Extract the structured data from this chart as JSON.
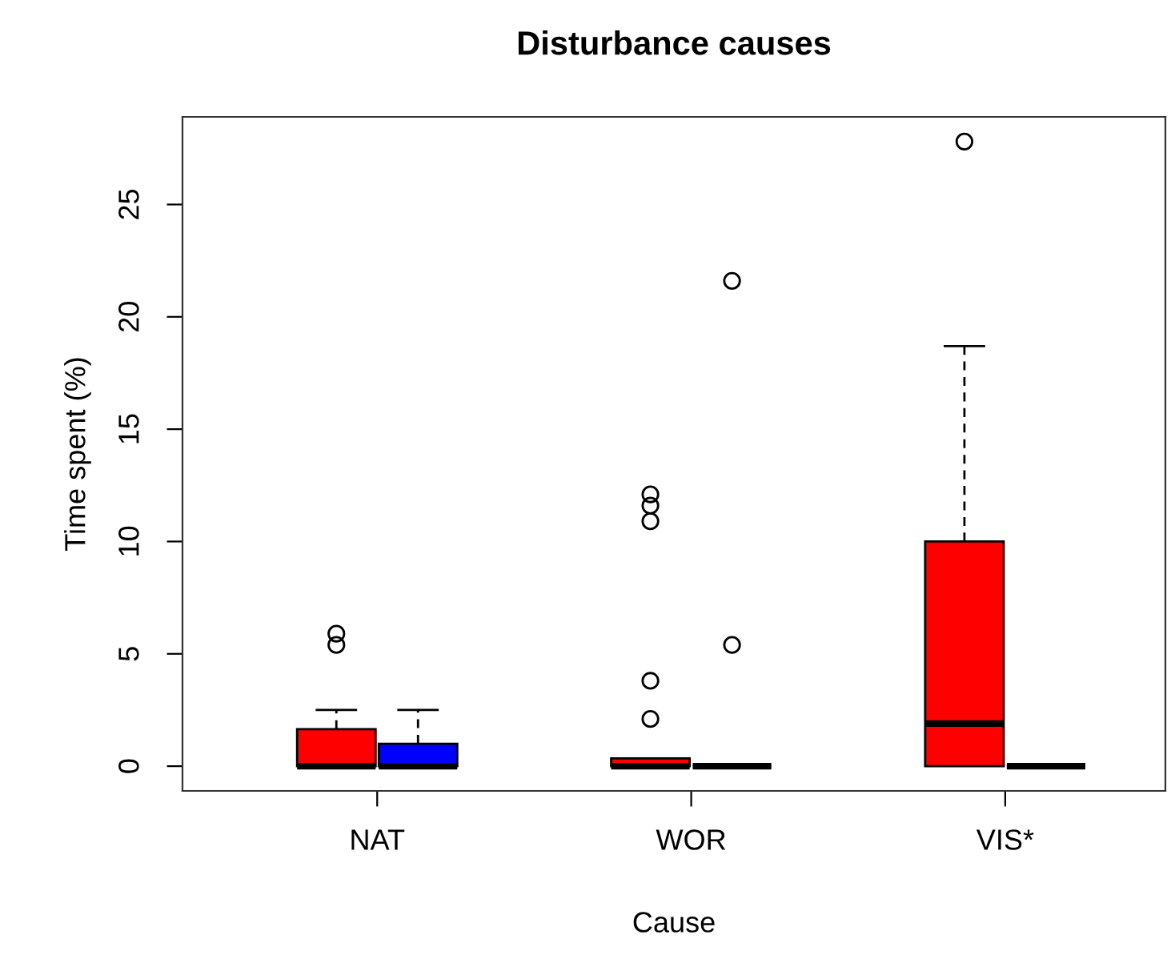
{
  "chart_data": {
    "type": "box",
    "title": "Disturbance causes",
    "xlabel": "Cause",
    "ylabel": "Time spent (%)",
    "categories": [
      "NAT",
      "WOR",
      "VIS*"
    ],
    "series": [
      {
        "color": "#ff0000",
        "boxes": [
          {
            "low": 0,
            "q1": 0,
            "median": 0,
            "q3": 1.65,
            "high": 2.5,
            "outliers": [
              5.9,
              5.4
            ]
          },
          {
            "low": 0,
            "q1": 0,
            "median": 0,
            "q3": 0.35,
            "high": 0.35,
            "outliers": [
              12.1,
              11.6,
              10.9,
              3.8,
              2.1
            ]
          },
          {
            "low": 0,
            "q1": 0,
            "median": 1.9,
            "q3": 10.0,
            "high": 18.7,
            "outliers": [
              27.8
            ]
          }
        ]
      },
      {
        "color": "#0000ff",
        "boxes": [
          {
            "low": 0,
            "q1": 0,
            "median": 0,
            "q3": 1.0,
            "high": 2.5
          },
          {
            "low": 0,
            "q1": 0,
            "median": 0,
            "q3": 0,
            "high": 0,
            "outliers": [
              21.6,
              5.4
            ]
          },
          {
            "low": 0,
            "q1": 0,
            "median": 0,
            "q3": 0,
            "high": 0
          }
        ]
      }
    ],
    "ylim": [
      -1.1,
      28.9
    ],
    "yticks": [
      0,
      5,
      10,
      15,
      20,
      25
    ],
    "grid": false,
    "legend": false
  }
}
